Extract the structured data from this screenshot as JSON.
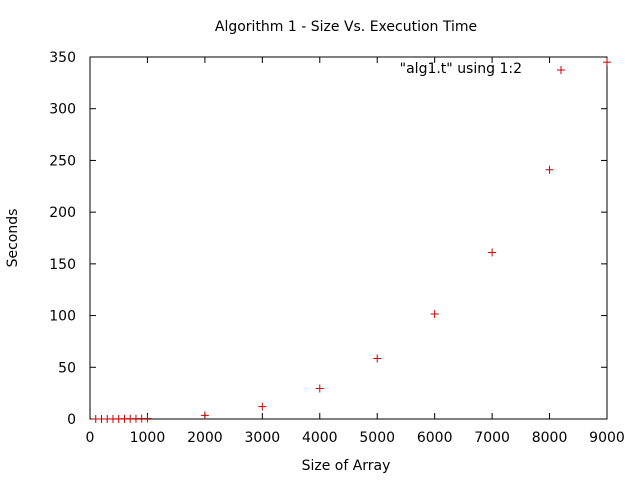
{
  "chart_data": {
    "type": "scatter",
    "title": "Algorithm 1 - Size Vs. Execution Time",
    "xlabel": "Size of Array",
    "ylabel": "Seconds",
    "xlim": [
      0,
      9000
    ],
    "ylim": [
      0,
      350
    ],
    "x_ticks": [
      0,
      1000,
      2000,
      3000,
      4000,
      5000,
      6000,
      7000,
      8000,
      9000
    ],
    "y_ticks": [
      0,
      50,
      100,
      150,
      200,
      250,
      300,
      350
    ],
    "grid": false,
    "legend_position": "top-right",
    "marker": "plus",
    "series": [
      {
        "name": "\"alg1.t\" using 1:2",
        "color": "#cc0000",
        "points": [
          {
            "x": 100,
            "y": 0
          },
          {
            "x": 200,
            "y": 0
          },
          {
            "x": 300,
            "y": 0
          },
          {
            "x": 400,
            "y": 0.1
          },
          {
            "x": 500,
            "y": 0.1
          },
          {
            "x": 600,
            "y": 0.2
          },
          {
            "x": 700,
            "y": 0.2
          },
          {
            "x": 800,
            "y": 0.3
          },
          {
            "x": 900,
            "y": 0.4
          },
          {
            "x": 1000,
            "y": 0.5
          },
          {
            "x": 2000,
            "y": 3.5
          },
          {
            "x": 3000,
            "y": 12
          },
          {
            "x": 4000,
            "y": 29.5
          },
          {
            "x": 5000,
            "y": 58.5
          },
          {
            "x": 6000,
            "y": 101.5
          },
          {
            "x": 7000,
            "y": 161
          },
          {
            "x": 8000,
            "y": 241
          },
          {
            "x": 9000,
            "y": 345
          }
        ]
      }
    ]
  }
}
